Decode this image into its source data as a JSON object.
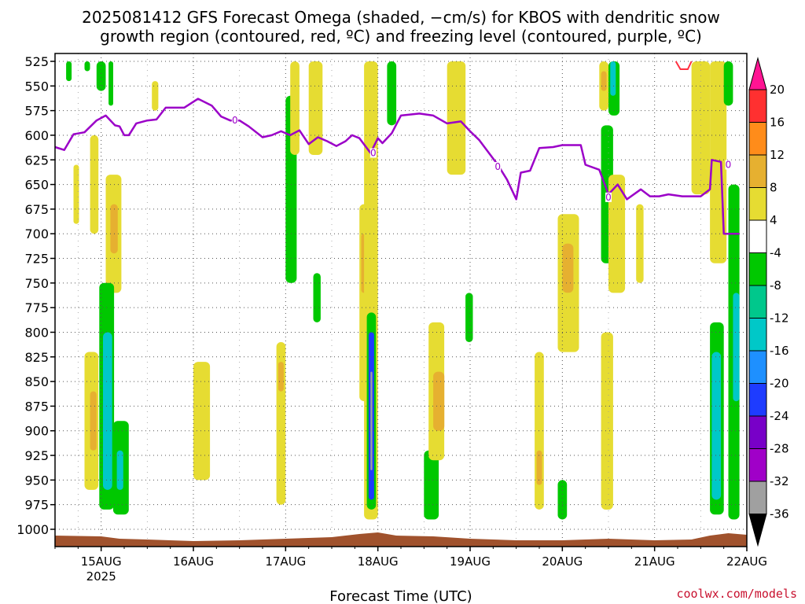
{
  "chart_data": {
    "type": "heatmap",
    "title_line1": "2025081412 GFS Forecast Omega (shaded, −cm/s) for KBOS with dendritic snow",
    "title_line2": "growth region (contoured, red, ºC) and freezing level (contoured, purple, ºC)",
    "xlabel": "Forecast Time (UTC)",
    "credit": "coolwx.com/models",
    "x_range": [
      "2025-08-14T12:00",
      "2025-08-22T00:00"
    ],
    "y_range": [
      525,
      1000
    ],
    "y_scale": "pressure (hPa)",
    "y_ticks": [
      525,
      550,
      575,
      600,
      625,
      650,
      675,
      700,
      725,
      750,
      775,
      800,
      825,
      850,
      875,
      900,
      925,
      950,
      975,
      1000
    ],
    "x_ticks": [
      {
        "day": 15,
        "label": "15AUG",
        "sublabel": "2025"
      },
      {
        "day": 16,
        "label": "16AUG",
        "sublabel": ""
      },
      {
        "day": 17,
        "label": "17AUG",
        "sublabel": ""
      },
      {
        "day": 18,
        "label": "18AUG",
        "sublabel": ""
      },
      {
        "day": 19,
        "label": "19AUG",
        "sublabel": ""
      },
      {
        "day": 20,
        "label": "20AUG",
        "sublabel": ""
      },
      {
        "day": 21,
        "label": "21AUG",
        "sublabel": ""
      },
      {
        "day": 22,
        "label": "22AUG",
        "sublabel": ""
      }
    ],
    "grid": true,
    "colorbar": {
      "labels": [
        20,
        16,
        12,
        8,
        4,
        -4,
        -8,
        -12,
        -16,
        -20,
        -24,
        -28,
        -32,
        -36
      ],
      "colors": [
        "#ff1493",
        "#ff3030",
        "#ff8c1a",
        "#e6b030",
        "#e6dc32",
        "#ffffff",
        "#00c800",
        "#00c88c",
        "#00c8c8",
        "#1e90ff",
        "#1e3cff",
        "#7800c8",
        "#a000c8",
        "#a0a0a0",
        "#000000"
      ]
    },
    "freezing_level": {
      "label": "0",
      "color": "#9b00c8",
      "points": [
        [
          14.5,
          612
        ],
        [
          14.6,
          615
        ],
        [
          14.7,
          599
        ],
        [
          14.82,
          597
        ],
        [
          14.95,
          585
        ],
        [
          15.05,
          580
        ],
        [
          15.15,
          590
        ],
        [
          15.2,
          591
        ],
        [
          15.25,
          600
        ],
        [
          15.3,
          600
        ],
        [
          15.38,
          588
        ],
        [
          15.5,
          585
        ],
        [
          15.6,
          584
        ],
        [
          15.7,
          572
        ],
        [
          15.9,
          572
        ],
        [
          16.05,
          563
        ],
        [
          16.2,
          570
        ],
        [
          16.3,
          581
        ],
        [
          16.4,
          585
        ],
        [
          16.5,
          585
        ],
        [
          16.6,
          591
        ],
        [
          16.75,
          602
        ],
        [
          16.85,
          600
        ],
        [
          16.95,
          596
        ],
        [
          17.05,
          600
        ],
        [
          17.15,
          595
        ],
        [
          17.25,
          609
        ],
        [
          17.35,
          602
        ],
        [
          17.45,
          606
        ],
        [
          17.55,
          611
        ],
        [
          17.65,
          606
        ],
        [
          17.72,
          600
        ],
        [
          17.8,
          603
        ],
        [
          17.92,
          618
        ],
        [
          18.0,
          603
        ],
        [
          18.05,
          608
        ],
        [
          18.15,
          598
        ],
        [
          18.25,
          580
        ],
        [
          18.45,
          578
        ],
        [
          18.6,
          580
        ],
        [
          18.75,
          588
        ],
        [
          18.9,
          586
        ],
        [
          19.0,
          596
        ],
        [
          19.1,
          605
        ],
        [
          19.22,
          620
        ],
        [
          19.3,
          630
        ],
        [
          19.4,
          645
        ],
        [
          19.5,
          665
        ],
        [
          19.55,
          638
        ],
        [
          19.65,
          636
        ],
        [
          19.75,
          613
        ],
        [
          19.9,
          612
        ],
        [
          20.0,
          610
        ],
        [
          20.1,
          610
        ],
        [
          20.2,
          610
        ],
        [
          20.25,
          630
        ],
        [
          20.4,
          635
        ],
        [
          20.5,
          660
        ],
        [
          20.6,
          650
        ],
        [
          20.7,
          665
        ],
        [
          20.85,
          655
        ],
        [
          20.95,
          662
        ],
        [
          21.05,
          662
        ],
        [
          21.15,
          660
        ],
        [
          21.3,
          662
        ],
        [
          21.5,
          662
        ],
        [
          21.6,
          655
        ],
        [
          21.62,
          625
        ],
        [
          21.72,
          627
        ],
        [
          21.75,
          700
        ],
        [
          21.92,
          700
        ]
      ],
      "contour_labels": [
        [
          16.45,
          585
        ],
        [
          17.95,
          618
        ],
        [
          19.3,
          632
        ],
        [
          20.5,
          663
        ],
        [
          21.8,
          630
        ]
      ]
    },
    "dgz_contour": {
      "color": "#ff3040",
      "segments": [
        [
          [
            21.23,
            525
          ],
          [
            21.28,
            533
          ],
          [
            21.36,
            533
          ],
          [
            21.4,
            525
          ]
        ]
      ]
    },
    "shaded_regions": [
      {
        "x": [
          14.95,
          15.05
        ],
        "y": [
          525,
          555
        ],
        "value": -6
      },
      {
        "x": [
          14.82,
          14.88
        ],
        "y": [
          525,
          535
        ],
        "value": -6
      },
      {
        "x": [
          14.62,
          14.68
        ],
        "y": [
          525,
          545
        ],
        "value": -6
      },
      {
        "x": [
          15.08,
          15.13
        ],
        "y": [
          525,
          570
        ],
        "value": -6
      },
      {
        "x": [
          15.05,
          15.22
        ],
        "y": [
          640,
          760
        ],
        "value": 5
      },
      {
        "x": [
          15.1,
          15.18
        ],
        "y": [
          670,
          720
        ],
        "value": 9
      },
      {
        "x": [
          14.88,
          14.97
        ],
        "y": [
          600,
          700
        ],
        "value": 5
      },
      {
        "x": [
          14.7,
          14.76
        ],
        "y": [
          630,
          690
        ],
        "value": 5
      },
      {
        "x": [
          14.98,
          15.14
        ],
        "y": [
          750,
          980
        ],
        "value": -7
      },
      {
        "x": [
          15.02,
          15.12
        ],
        "y": [
          800,
          960
        ],
        "value": -13
      },
      {
        "x": [
          14.82,
          14.97
        ],
        "y": [
          820,
          960
        ],
        "value": 5
      },
      {
        "x": [
          14.88,
          14.95
        ],
        "y": [
          860,
          920
        ],
        "value": 9
      },
      {
        "x": [
          15.13,
          15.3
        ],
        "y": [
          890,
          985
        ],
        "value": -7
      },
      {
        "x": [
          15.17,
          15.24
        ],
        "y": [
          920,
          960
        ],
        "value": -13
      },
      {
        "x": [
          15.55,
          15.62
        ],
        "y": [
          545,
          575
        ],
        "value": 5
      },
      {
        "x": [
          16.0,
          16.18
        ],
        "y": [
          830,
          950
        ],
        "value": 5
      },
      {
        "x": [
          17.0,
          17.12
        ],
        "y": [
          560,
          750
        ],
        "value": -7
      },
      {
        "x": [
          17.05,
          17.15
        ],
        "y": [
          525,
          620
        ],
        "value": 5
      },
      {
        "x": [
          16.9,
          17.0
        ],
        "y": [
          810,
          975
        ],
        "value": 5
      },
      {
        "x": [
          16.92,
          16.98
        ],
        "y": [
          830,
          860
        ],
        "value": 9
      },
      {
        "x": [
          17.25,
          17.4
        ],
        "y": [
          525,
          620
        ],
        "value": 5
      },
      {
        "x": [
          17.3,
          17.38
        ],
        "y": [
          740,
          790
        ],
        "value": -7
      },
      {
        "x": [
          17.8,
          17.9
        ],
        "y": [
          670,
          870
        ],
        "value": 5
      },
      {
        "x": [
          17.82,
          17.88
        ],
        "y": [
          700,
          760
        ],
        "value": 9
      },
      {
        "x": [
          17.85,
          18.0
        ],
        "y": [
          525,
          990
        ],
        "value": 5
      },
      {
        "x": [
          17.88,
          17.98
        ],
        "y": [
          780,
          980
        ],
        "value": -7
      },
      {
        "x": [
          17.9,
          17.96
        ],
        "y": [
          800,
          970
        ],
        "value": -22
      },
      {
        "x": [
          17.92,
          17.94
        ],
        "y": [
          840,
          940
        ],
        "value": -36
      },
      {
        "x": [
          18.1,
          18.2
        ],
        "y": [
          525,
          590
        ],
        "value": -7
      },
      {
        "x": [
          18.5,
          18.66
        ],
        "y": [
          920,
          990
        ],
        "value": -7
      },
      {
        "x": [
          18.55,
          18.72
        ],
        "y": [
          790,
          930
        ],
        "value": 5
      },
      {
        "x": [
          18.6,
          18.72
        ],
        "y": [
          840,
          900
        ],
        "value": 9
      },
      {
        "x": [
          18.75,
          18.95
        ],
        "y": [
          525,
          640
        ],
        "value": 5
      },
      {
        "x": [
          18.95,
          19.03
        ],
        "y": [
          760,
          810
        ],
        "value": -7
      },
      {
        "x": [
          19.7,
          19.8
        ],
        "y": [
          820,
          980
        ],
        "value": 5
      },
      {
        "x": [
          19.72,
          19.78
        ],
        "y": [
          920,
          955
        ],
        "value": 9
      },
      {
        "x": [
          19.95,
          20.05
        ],
        "y": [
          950,
          990
        ],
        "value": -7
      },
      {
        "x": [
          19.95,
          20.18
        ],
        "y": [
          680,
          820
        ],
        "value": 5
      },
      {
        "x": [
          20.0,
          20.12
        ],
        "y": [
          710,
          760
        ],
        "value": 9
      },
      {
        "x": [
          20.4,
          20.5
        ],
        "y": [
          525,
          575
        ],
        "value": 5
      },
      {
        "x": [
          20.42,
          20.48
        ],
        "y": [
          535,
          555
        ],
        "value": 9
      },
      {
        "x": [
          20.42,
          20.55
        ],
        "y": [
          590,
          730
        ],
        "value": -7
      },
      {
        "x": [
          20.5,
          20.62
        ],
        "y": [
          525,
          580
        ],
        "value": -7
      },
      {
        "x": [
          20.52,
          20.58
        ],
        "y": [
          525,
          560
        ],
        "value": -13
      },
      {
        "x": [
          20.5,
          20.68
        ],
        "y": [
          640,
          760
        ],
        "value": 5
      },
      {
        "x": [
          20.42,
          20.55
        ],
        "y": [
          800,
          980
        ],
        "value": 5
      },
      {
        "x": [
          20.8,
          20.88
        ],
        "y": [
          670,
          750
        ],
        "value": 5
      },
      {
        "x": [
          21.4,
          21.6
        ],
        "y": [
          525,
          660
        ],
        "value": 5
      },
      {
        "x": [
          21.6,
          21.78
        ],
        "y": [
          525,
          730
        ],
        "value": 5
      },
      {
        "x": [
          21.75,
          21.85
        ],
        "y": [
          525,
          570
        ],
        "value": -7
      },
      {
        "x": [
          21.8,
          21.92
        ],
        "y": [
          650,
          990
        ],
        "value": -7
      },
      {
        "x": [
          21.85,
          21.92
        ],
        "y": [
          760,
          870
        ],
        "value": -13
      },
      {
        "x": [
          21.6,
          21.75
        ],
        "y": [
          790,
          985
        ],
        "value": -7
      },
      {
        "x": [
          21.62,
          21.72
        ],
        "y": [
          820,
          970
        ],
        "value": -16
      }
    ]
  }
}
